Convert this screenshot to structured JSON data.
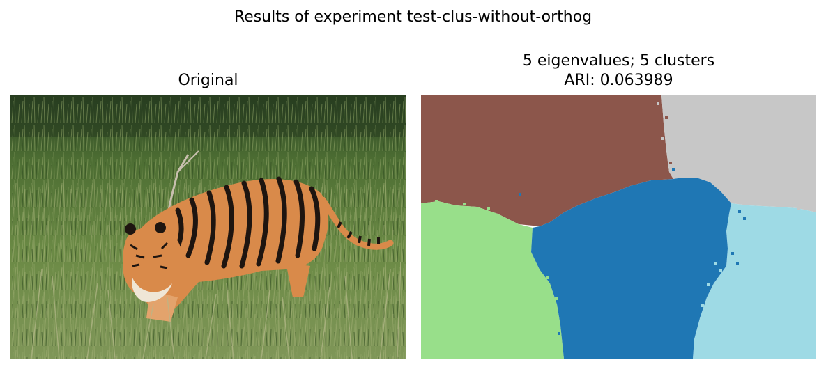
{
  "figure": {
    "suptitle": "Results of experiment test-clus-without-orthog"
  },
  "panels": [
    {
      "title": "Original",
      "content": "photograph"
    },
    {
      "title_line1": "5 eigenvalues; 5 clusters",
      "title_line2": "ARI: 0.063989",
      "content": "segmentation map",
      "n_clusters": 5,
      "cluster_colors": {
        "brown": "#8c564b",
        "gray": "#c7c7c7",
        "blue": "#1f77b4",
        "light_green": "#98df8a",
        "light_blue": "#9edae5"
      }
    }
  ],
  "colors": {
    "grass_dark": "#3d5a2a",
    "grass_mid": "#5e7d3c",
    "grass_light": "#8aa063",
    "tiger_orange": "#d98a4a",
    "tiger_stripe": "#1e1510",
    "tiger_white": "#efe6d6"
  }
}
